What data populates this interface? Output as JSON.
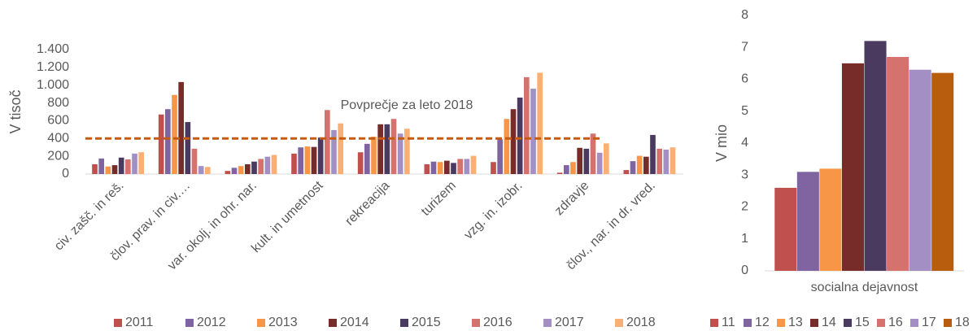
{
  "chart_data": [
    {
      "type": "bar",
      "y_label": "V tisoč",
      "categories": [
        "civ. zašč. in reš.",
        "člov. prav. in civ.…",
        "var. okolj. in ohr. nar.",
        "kult. in umetnost",
        "rekreacija",
        "turizem",
        "vzg. in. izobr.",
        "zdravje",
        "člov., nar. in dr. vred."
      ],
      "series": [
        {
          "name": "2011",
          "color": "#c0504d",
          "values": [
            110,
            670,
            35,
            230,
            245,
            110,
            135,
            15,
            45
          ]
        },
        {
          "name": "2012",
          "color": "#8064a2",
          "values": [
            175,
            730,
            70,
            300,
            340,
            140,
            390,
            100,
            145
          ]
        },
        {
          "name": "2013",
          "color": "#f79646",
          "values": [
            85,
            890,
            90,
            310,
            420,
            135,
            620,
            135,
            205
          ]
        },
        {
          "name": "2014",
          "color": "#772c2a",
          "values": [
            100,
            1035,
            110,
            305,
            560,
            150,
            730,
            295,
            195
          ]
        },
        {
          "name": "2015",
          "color": "#4b3a60",
          "values": [
            185,
            585,
            140,
            410,
            560,
            125,
            860,
            285,
            440
          ]
        },
        {
          "name": "2016",
          "color": "#d6726e",
          "values": [
            165,
            285,
            170,
            720,
            620,
            170,
            1090,
            455,
            285
          ]
        },
        {
          "name": "2017",
          "color": "#a38fc4",
          "values": [
            230,
            90,
            195,
            495,
            455,
            170,
            960,
            240,
            275
          ]
        },
        {
          "name": "2018",
          "color": "#fab074",
          "values": [
            245,
            80,
            215,
            570,
            510,
            205,
            1140,
            345,
            300
          ]
        }
      ],
      "average": 400,
      "average_label": "Povprečje za leto 2018",
      "average_color": "#c55a11",
      "ylim": [
        0,
        1400
      ],
      "yticks": [
        0,
        200,
        400,
        600,
        800,
        {
          "value": 1000,
          "label": "1.000"
        },
        {
          "value": 1200,
          "label": "1.200"
        },
        {
          "value": 1400,
          "label": "1.400"
        }
      ]
    },
    {
      "type": "bar",
      "y_label": "V mio",
      "categories": [
        "socialna dejavnost"
      ],
      "series": [
        {
          "name": "11",
          "color": "#c0504d",
          "values": [
            2.6
          ]
        },
        {
          "name": "12",
          "color": "#8064a2",
          "values": [
            3.1
          ]
        },
        {
          "name": "13",
          "color": "#f79646",
          "values": [
            3.2
          ]
        },
        {
          "name": "14",
          "color": "#772c2a",
          "values": [
            6.5
          ]
        },
        {
          "name": "15",
          "color": "#4b3a60",
          "values": [
            7.2
          ]
        },
        {
          "name": "16",
          "color": "#d6726e",
          "values": [
            6.7
          ]
        },
        {
          "name": "17",
          "color": "#a38fc4",
          "values": [
            6.3
          ]
        },
        {
          "name": "18",
          "color": "#b85c0e",
          "values": [
            6.2
          ]
        }
      ],
      "ylim": [
        0,
        8
      ],
      "yticks": [
        0,
        1,
        2,
        3,
        4,
        5,
        6,
        7,
        8
      ]
    }
  ]
}
